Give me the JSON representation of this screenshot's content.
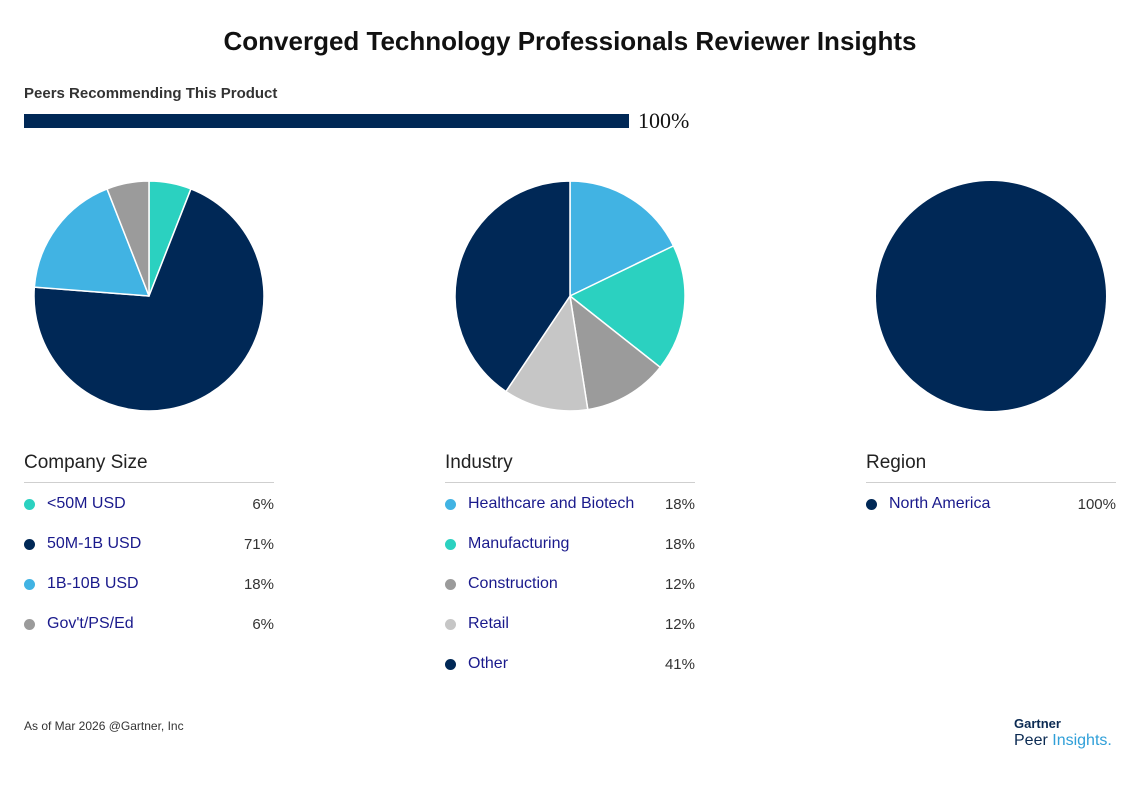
{
  "title": "Converged Technology Professionals Reviewer Insights",
  "recommend": {
    "label": "Peers Recommending This Product",
    "value_text": "100%",
    "fraction": 1.0,
    "color": "#002856"
  },
  "colors": {
    "teal": "#2bd1c0",
    "navy": "#002856",
    "sky": "#41b3e3",
    "gray": "#9b9b9b",
    "lightgray": "#c6c6c6"
  },
  "chart_data": [
    {
      "type": "pie",
      "title": "Company Size",
      "categories": [
        "<50M USD",
        "50M-1B USD",
        "1B-10B USD",
        "Gov't/PS/Ed"
      ],
      "values": [
        6,
        71,
        18,
        6
      ],
      "value_labels": [
        "6%",
        "71%",
        "18%",
        "6%"
      ],
      "colors": [
        "#2bd1c0",
        "#002856",
        "#41b3e3",
        "#9b9b9b"
      ]
    },
    {
      "type": "pie",
      "title": "Industry",
      "categories": [
        "Healthcare and Biotech",
        "Manufacturing",
        "Construction",
        "Retail",
        "Other"
      ],
      "values": [
        18,
        18,
        12,
        12,
        41
      ],
      "value_labels": [
        "18%",
        "18%",
        "12%",
        "12%",
        "41%"
      ],
      "colors": [
        "#41b3e3",
        "#2bd1c0",
        "#9b9b9b",
        "#c6c6c6",
        "#002856"
      ]
    },
    {
      "type": "pie",
      "title": "Region",
      "categories": [
        "North America"
      ],
      "values": [
        100
      ],
      "value_labels": [
        "100%"
      ],
      "colors": [
        "#002856"
      ]
    }
  ],
  "footer": {
    "text": "As of Mar 2026 @Gartner, Inc"
  },
  "brand": {
    "top": "Gartner",
    "peer": "Peer",
    "insights": "Insights."
  }
}
